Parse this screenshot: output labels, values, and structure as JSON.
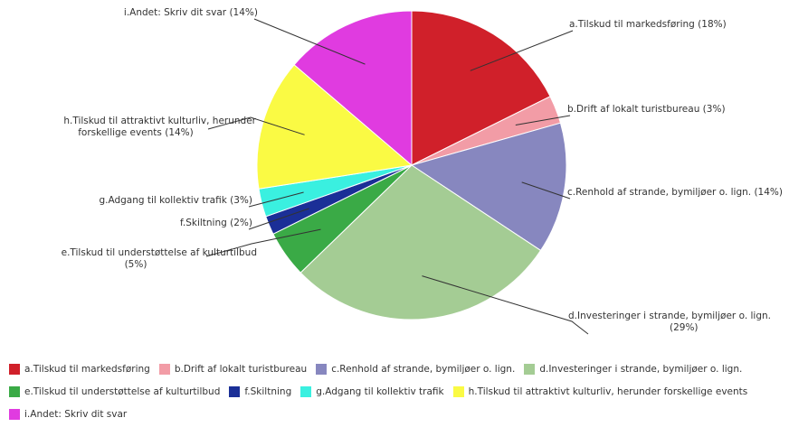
{
  "chart_data": {
    "type": "pie",
    "title": "",
    "slices": [
      {
        "category": "a.Tilskud til markedsføring",
        "value": 18,
        "label": "a.Tilskud til markedsføring (18%)",
        "color": "#d0202a"
      },
      {
        "category": "b.Drift af lokalt turistbureau",
        "value": 3,
        "label": "b.Drift af lokalt turistbureau (3%)",
        "color": "#f29ca6"
      },
      {
        "category": "c.Renhold af strande, bymiljøer o. lign.",
        "value": 14,
        "label": "c.Renhold af strande, bymiljøer o. lign. (14%)",
        "color": "#8787bf"
      },
      {
        "category": "d.Investeringer i strande, bymiljøer o. lign.",
        "value": 29,
        "label": "d.Investeringer i strande, bymiljøer o. lign. (29%)",
        "color": "#a4cc94"
      },
      {
        "category": "e.Tilskud til understøttelse af kulturtilbud",
        "value": 5,
        "label": "e.Tilskud til understøttelse af kulturtilbud (5%)",
        "color": "#3aaa46"
      },
      {
        "category": "f.Skiltning",
        "value": 2,
        "label": "f.Skiltning (2%)",
        "color": "#1b2f97"
      },
      {
        "category": "g.Adgang til kollektiv trafik",
        "value": 3,
        "label": "g.Adgang til kollektiv trafik (3%)",
        "color": "#3af0e0"
      },
      {
        "category": "h.Tilskud til attraktivt kulturliv, herunder forskellige events",
        "value": 14,
        "label": "h.Tilskud til attraktivt kulturliv, herunder forskellige events (14%)",
        "color": "#fafa44"
      },
      {
        "category": "i.Andet: Skriv dit svar",
        "value": 14,
        "label": "i.Andet: Skriv dit svar (14%)",
        "color": "#e03be0"
      }
    ],
    "legend_position": "bottom"
  }
}
